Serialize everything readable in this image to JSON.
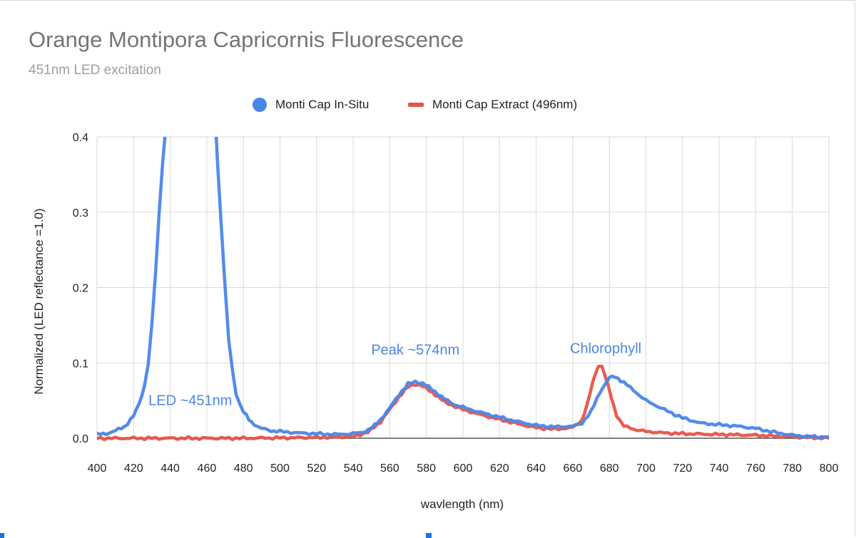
{
  "chart_data": {
    "type": "line",
    "title": "Orange Montipora Capricornis Fluorescence",
    "subtitle": "451nm LED excitation",
    "xlabel": "wavlength (nm)",
    "ylabel": "Normalized (LED reflectance =1.0)",
    "xlim": [
      400,
      800
    ],
    "ylim": [
      0,
      0.4
    ],
    "x_ticks": [
      "400",
      "420",
      "440",
      "460",
      "480",
      "500",
      "520",
      "540",
      "560",
      "580",
      "600",
      "620",
      "640",
      "660",
      "680",
      "700",
      "720",
      "740",
      "760",
      "780",
      "800"
    ],
    "y_ticks": [
      "0.0",
      "0.1",
      "0.2",
      "0.3",
      "0.4"
    ],
    "grid": true,
    "legend_position": "top",
    "series": [
      {
        "name": "Monti Cap In-Situ",
        "color": "#4a86e8",
        "marker": "circle",
        "points": [
          [
            400,
            0.005
          ],
          [
            405,
            0.006
          ],
          [
            410,
            0.01
          ],
          [
            415,
            0.015
          ],
          [
            420,
            0.03
          ],
          [
            423,
            0.045
          ],
          [
            426,
            0.07
          ],
          [
            428,
            0.1
          ],
          [
            430,
            0.15
          ],
          [
            432,
            0.22
          ],
          [
            434,
            0.3
          ],
          [
            436,
            0.37
          ],
          [
            437.5,
            0.41
          ],
          [
            465,
            0.41
          ],
          [
            466,
            0.36
          ],
          [
            468,
            0.28
          ],
          [
            470,
            0.2
          ],
          [
            472,
            0.13
          ],
          [
            474,
            0.09
          ],
          [
            476,
            0.06
          ],
          [
            478,
            0.045
          ],
          [
            480,
            0.035
          ],
          [
            483,
            0.025
          ],
          [
            486,
            0.018
          ],
          [
            490,
            0.013
          ],
          [
            495,
            0.01
          ],
          [
            500,
            0.009
          ],
          [
            510,
            0.007
          ],
          [
            520,
            0.006
          ],
          [
            530,
            0.005
          ],
          [
            540,
            0.006
          ],
          [
            545,
            0.008
          ],
          [
            550,
            0.013
          ],
          [
            555,
            0.025
          ],
          [
            560,
            0.04
          ],
          [
            565,
            0.058
          ],
          [
            570,
            0.072
          ],
          [
            574,
            0.075
          ],
          [
            578,
            0.073
          ],
          [
            583,
            0.065
          ],
          [
            590,
            0.052
          ],
          [
            595,
            0.045
          ],
          [
            600,
            0.041
          ],
          [
            610,
            0.034
          ],
          [
            620,
            0.028
          ],
          [
            630,
            0.022
          ],
          [
            640,
            0.017
          ],
          [
            650,
            0.015
          ],
          [
            660,
            0.016
          ],
          [
            665,
            0.02
          ],
          [
            670,
            0.035
          ],
          [
            675,
            0.062
          ],
          [
            680,
            0.08
          ],
          [
            683,
            0.082
          ],
          [
            688,
            0.074
          ],
          [
            695,
            0.06
          ],
          [
            700,
            0.05
          ],
          [
            710,
            0.038
          ],
          [
            720,
            0.027
          ],
          [
            730,
            0.02
          ],
          [
            740,
            0.018
          ],
          [
            750,
            0.016
          ],
          [
            760,
            0.013
          ],
          [
            770,
            0.008
          ],
          [
            780,
            0.004
          ],
          [
            790,
            0.002
          ],
          [
            800,
            0.002
          ]
        ]
      },
      {
        "name": "Monti Cap Extract (496nm)",
        "color": "#e8534a",
        "marker": "line",
        "points": [
          [
            400,
            0.0
          ],
          [
            440,
            0.0
          ],
          [
            480,
            0.0
          ],
          [
            520,
            0.001
          ],
          [
            540,
            0.002
          ],
          [
            548,
            0.008
          ],
          [
            555,
            0.022
          ],
          [
            560,
            0.038
          ],
          [
            565,
            0.055
          ],
          [
            570,
            0.068
          ],
          [
            574,
            0.072
          ],
          [
            578,
            0.069
          ],
          [
            585,
            0.058
          ],
          [
            590,
            0.048
          ],
          [
            600,
            0.038
          ],
          [
            610,
            0.031
          ],
          [
            620,
            0.025
          ],
          [
            630,
            0.019
          ],
          [
            640,
            0.014
          ],
          [
            650,
            0.012
          ],
          [
            660,
            0.014
          ],
          [
            665,
            0.024
          ],
          [
            668,
            0.045
          ],
          [
            671,
            0.075
          ],
          [
            674,
            0.097
          ],
          [
            676,
            0.095
          ],
          [
            678,
            0.08
          ],
          [
            681,
            0.055
          ],
          [
            684,
            0.03
          ],
          [
            688,
            0.016
          ],
          [
            695,
            0.011
          ],
          [
            700,
            0.009
          ],
          [
            710,
            0.007
          ],
          [
            720,
            0.006
          ],
          [
            740,
            0.005
          ],
          [
            760,
            0.004
          ],
          [
            780,
            0.002
          ],
          [
            800,
            0.0
          ]
        ]
      }
    ],
    "annotations": [
      {
        "text": "LED ~451nm",
        "x": 451,
        "y": 0.044,
        "color": "#4a86e8"
      },
      {
        "text": "Peak ~574nm",
        "x": 574,
        "y": 0.111,
        "color": "#4a86e8"
      },
      {
        "text": "Chlorophyll",
        "x": 678,
        "y": 0.113,
        "color": "#4a86e8"
      }
    ]
  }
}
